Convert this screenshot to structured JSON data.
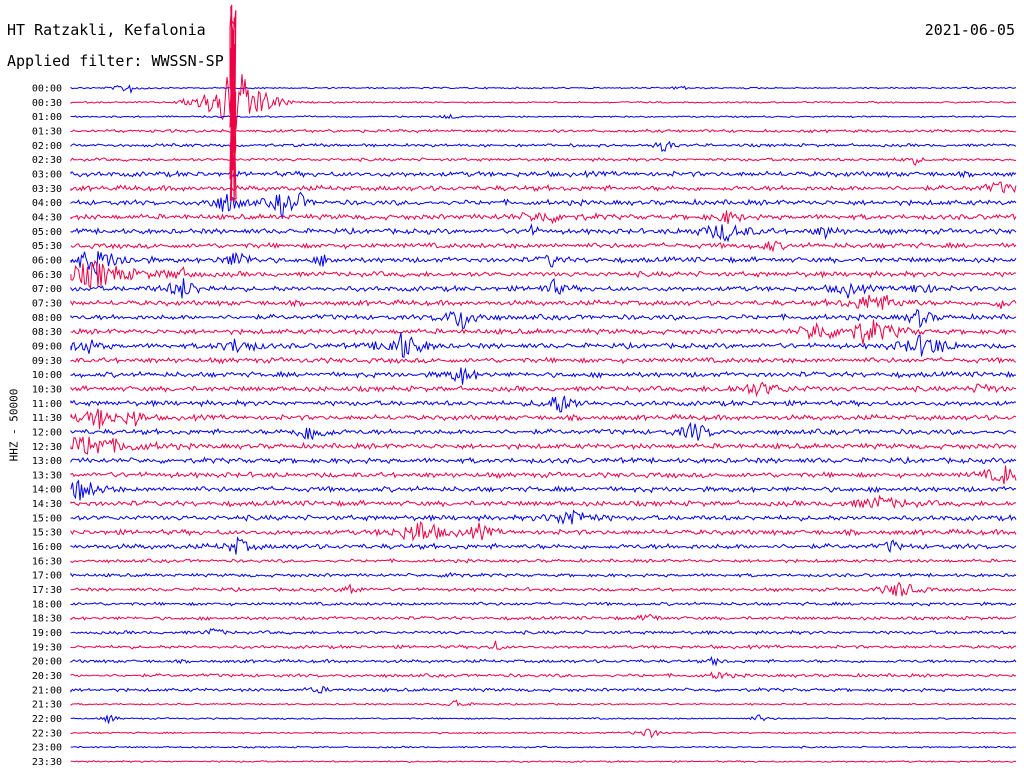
{
  "header": {
    "station": "HT Ratzakli, Kefalonia",
    "filter": "Applied filter: WWSSN-SP",
    "date": "2021-06-05"
  },
  "chart_data": {
    "type": "line",
    "title": "HT Ratzakli, Kefalonia",
    "subtitle": "Applied filter: WWSSN-SP",
    "ylabel": "HHZ - 50000",
    "xlabel": "",
    "rows": [
      "00:00",
      "00:30",
      "01:00",
      "01:30",
      "02:00",
      "02:30",
      "03:00",
      "03:30",
      "04:00",
      "04:30",
      "05:00",
      "05:30",
      "06:00",
      "06:30",
      "07:00",
      "07:30",
      "08:00",
      "08:30",
      "09:00",
      "09:30",
      "10:00",
      "10:30",
      "11:00",
      "11:30",
      "12:00",
      "12:30",
      "13:00",
      "13:30",
      "14:00",
      "14:30",
      "15:00",
      "15:30",
      "16:00",
      "16:30",
      "17:00",
      "17:30",
      "18:00",
      "18:30",
      "19:00",
      "19:30",
      "20:00",
      "20:30",
      "21:00",
      "21:30",
      "22:00",
      "22:30",
      "23:00",
      "23:30"
    ],
    "series_colors": [
      "#0000ee",
      "#ee0044"
    ],
    "grid": false,
    "legend": "none"
  }
}
